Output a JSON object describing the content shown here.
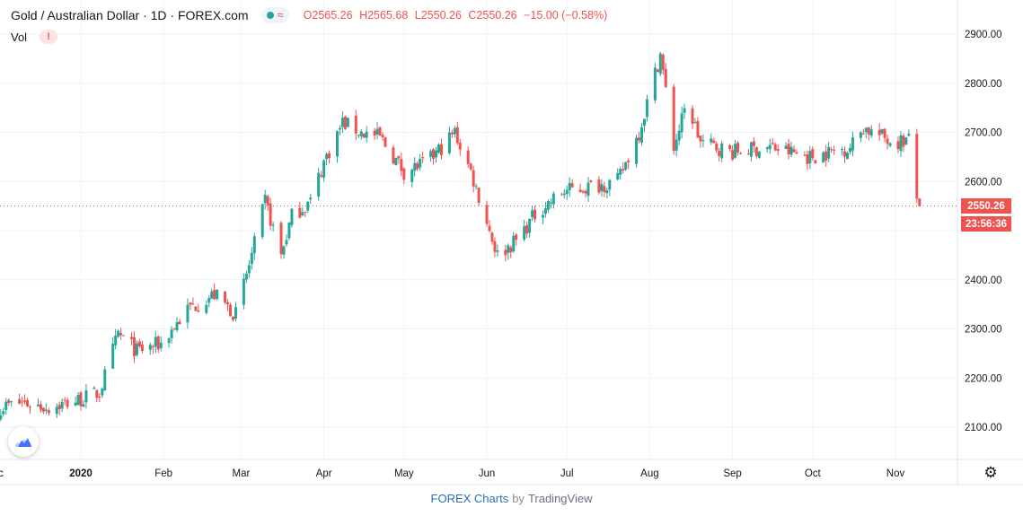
{
  "header": {
    "symbol": "Gold / Australian Dollar · 1D · FOREX.com",
    "ohlc": {
      "open": "O2565.26",
      "high": "H2565.68",
      "low": "L2550.26",
      "close": "C2550.26",
      "change": "−15.00 (−0.58%)"
    },
    "wave_glyph": "≈"
  },
  "volume": {
    "label": "Vol",
    "warning": "!"
  },
  "price_tags": {
    "last_price": "2550.26",
    "countdown": "23:56:36"
  },
  "footer": {
    "brand": "FOREX Charts",
    "by": "by",
    "provider": "TradingView"
  },
  "colors": {
    "up": "#26a69a",
    "down": "#ef5350",
    "grid": "#f0f3fa",
    "axis_text": "#131722"
  },
  "icons": {
    "logo": "tradingview-cloud-icon",
    "settings": "gear-icon"
  },
  "chart_data": {
    "type": "candlestick",
    "title": "Gold / Australian Dollar · 1D · FOREX.com",
    "y_axis": {
      "range": [
        2050,
        2950
      ],
      "ticks": [
        "2900.00",
        "2800.00",
        "2700.00",
        "2600.00",
        "2400.00",
        "2300.00",
        "2200.00",
        "2100.00"
      ]
    },
    "x_axis": {
      "labels": [
        "ec",
        "2020",
        "Feb",
        "Mar",
        "Apr",
        "May",
        "Jun",
        "Jul",
        "Aug",
        "Sep",
        "Oct",
        "Nov"
      ],
      "label_dates": [
        "2019-12-01",
        "2020-01-01",
        "2020-02-01",
        "2020-03-01",
        "2020-04-01",
        "2020-05-01",
        "2020-06-01",
        "2020-07-01",
        "2020-08-01",
        "2020-09-01",
        "2020-10-01",
        "2020-11-01"
      ]
    },
    "last_price": 2550.26,
    "price_path": [
      [
        "2019-12-01",
        2140
      ],
      [
        "2019-12-10",
        2150
      ],
      [
        "2019-12-20",
        2140
      ],
      [
        "2019-12-31",
        2155
      ],
      [
        "2020-01-08",
        2170
      ],
      [
        "2020-01-15",
        2290
      ],
      [
        "2020-01-22",
        2255
      ],
      [
        "2020-01-31",
        2270
      ],
      [
        "2020-02-10",
        2340
      ],
      [
        "2020-02-20",
        2370
      ],
      [
        "2020-02-28",
        2330
      ],
      [
        "2020-03-05",
        2450
      ],
      [
        "2020-03-10",
        2560
      ],
      [
        "2020-03-16",
        2450
      ],
      [
        "2020-03-20",
        2530
      ],
      [
        "2020-03-27",
        2560
      ],
      [
        "2020-04-01",
        2640
      ],
      [
        "2020-04-08",
        2720
      ],
      [
        "2020-04-15",
        2700
      ],
      [
        "2020-04-22",
        2690
      ],
      [
        "2020-05-01",
        2620
      ],
      [
        "2020-05-10",
        2640
      ],
      [
        "2020-05-20",
        2700
      ],
      [
        "2020-05-26",
        2620
      ],
      [
        "2020-06-05",
        2450
      ],
      [
        "2020-06-12",
        2480
      ],
      [
        "2020-06-20",
        2540
      ],
      [
        "2020-06-30",
        2580
      ],
      [
        "2020-07-10",
        2590
      ],
      [
        "2020-07-20",
        2600
      ],
      [
        "2020-07-28",
        2700
      ],
      [
        "2020-08-05",
        2860
      ],
      [
        "2020-08-10",
        2670
      ],
      [
        "2020-08-15",
        2760
      ],
      [
        "2020-08-20",
        2680
      ],
      [
        "2020-09-01",
        2660
      ],
      [
        "2020-09-15",
        2670
      ],
      [
        "2020-09-30",
        2650
      ],
      [
        "2020-10-15",
        2670
      ],
      [
        "2020-10-20",
        2710
      ],
      [
        "2020-10-31",
        2680
      ],
      [
        "2020-11-06",
        2685
      ],
      [
        "2020-11-09",
        2565
      ],
      [
        "2020-11-10",
        2550.26
      ]
    ]
  }
}
